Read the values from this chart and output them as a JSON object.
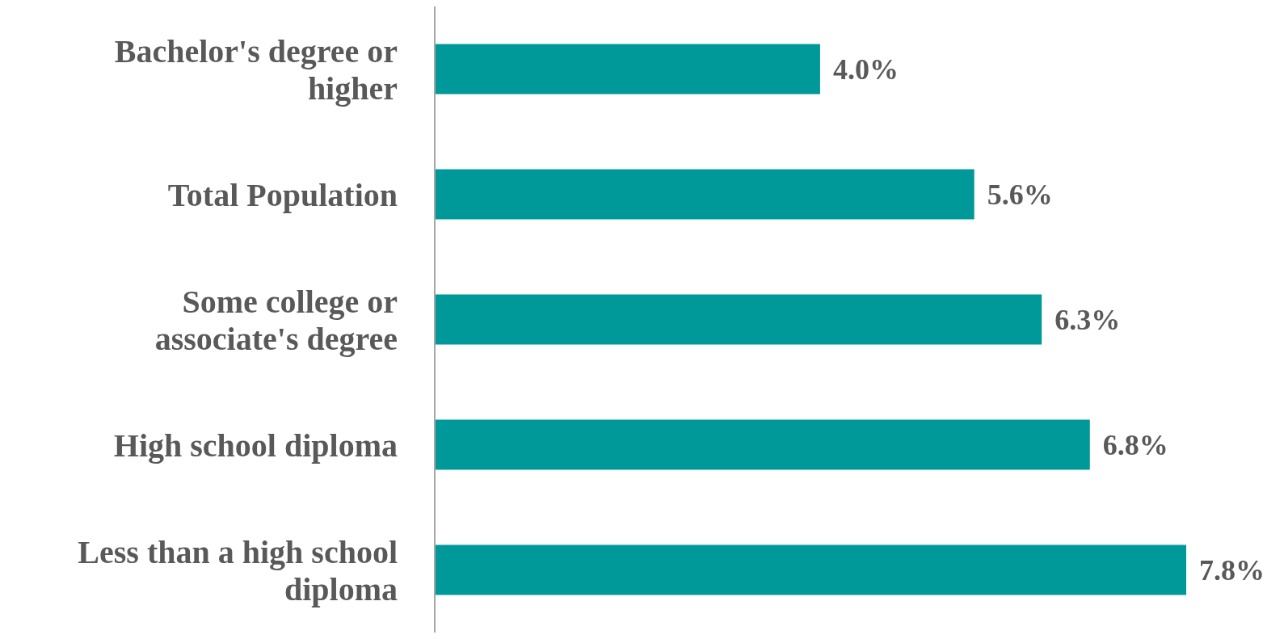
{
  "chart_data": {
    "type": "bar",
    "orientation": "horizontal",
    "categories": [
      "Bachelor's degree or higher",
      "Total Population",
      "Some college or associate's degree",
      "High school diploma",
      "Less than a high school diploma"
    ],
    "values": [
      4.0,
      5.6,
      6.3,
      6.8,
      7.8
    ],
    "value_labels": [
      "4.0%",
      "5.6%",
      "6.3%",
      "6.8%",
      "7.8%"
    ],
    "color": "#009999"
  }
}
